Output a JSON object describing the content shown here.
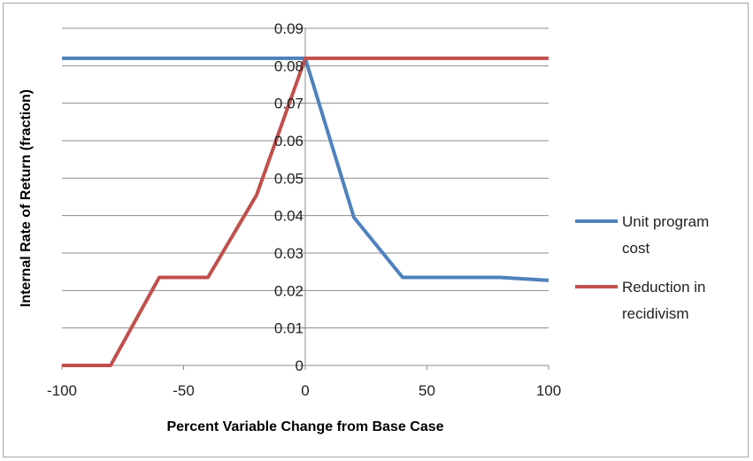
{
  "chart_data": {
    "type": "line",
    "title": "",
    "xlabel": "Percent Variable Change from Base Case",
    "ylabel": "Internal Rate of Return (fraction)",
    "xlim": [
      -100,
      100
    ],
    "ylim": [
      0,
      0.09
    ],
    "x_ticks": [
      "-100",
      "-50",
      "0",
      "50",
      "100"
    ],
    "y_ticks": [
      "0",
      "0.01",
      "0.02",
      "0.03",
      "0.04",
      "0.05",
      "0.06",
      "0.07",
      "0.08",
      "0.09"
    ],
    "grid": true,
    "legend_position": "right",
    "series": [
      {
        "name": "Unit program cost",
        "color": "#4f81bd",
        "x": [
          -100,
          -80,
          -60,
          -40,
          -20,
          0,
          20,
          40,
          60,
          80,
          100
        ],
        "y": [
          0.082,
          0.082,
          0.082,
          0.082,
          0.082,
          0.082,
          0.0395,
          0.0235,
          0.0235,
          0.0235,
          0.0227
        ]
      },
      {
        "name": "Reduction in recidivism",
        "color": "#c0504d",
        "x": [
          -100,
          -80,
          -60,
          -40,
          -20,
          0,
          20,
          40,
          60,
          80,
          100
        ],
        "y": [
          0,
          0,
          0.0235,
          0.0235,
          0.0455,
          0.082,
          0.082,
          0.082,
          0.082,
          0.082,
          0.082
        ]
      }
    ],
    "legend": [
      {
        "lines": [
          "Unit program",
          "cost"
        ]
      },
      {
        "lines": [
          "Reduction in",
          "recidivism"
        ]
      }
    ]
  }
}
